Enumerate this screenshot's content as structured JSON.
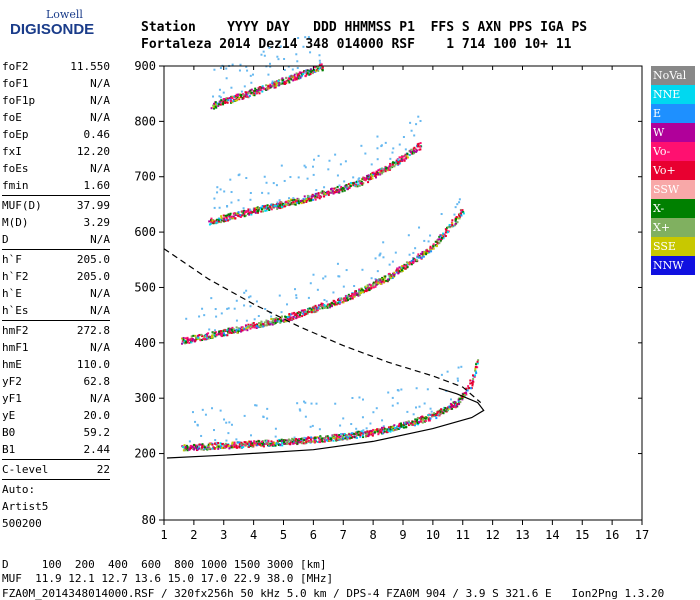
{
  "logo": {
    "line1": "Lowell",
    "line2": "DIGISONDE"
  },
  "header": {
    "labels": "Station    YYYY DAY   DDD HHMMSS P1  FFS S AXN PPS IGA PS",
    "values": "Fortaleza 2014 Dez14 348 014000 RSF    1 714 100 10+ 11"
  },
  "params_top": [
    {
      "key": "foF2",
      "value": "11.550"
    },
    {
      "key": "foF1",
      "value": "N/A"
    },
    {
      "key": "foF1p",
      "value": "N/A"
    },
    {
      "key": "foE",
      "value": "N/A"
    },
    {
      "key": "foEp",
      "value": "0.46"
    },
    {
      "key": "fxI",
      "value": "12.20"
    },
    {
      "key": "foEs",
      "value": "N/A"
    },
    {
      "key": "fmin",
      "value": "1.60"
    }
  ],
  "params_muf": [
    {
      "key": "MUF(D)",
      "value": "37.99"
    },
    {
      "key": "M(D)",
      "value": "3.29"
    },
    {
      "key": "D",
      "value": "N/A"
    }
  ],
  "params_h": [
    {
      "key": "h`F",
      "value": "205.0"
    },
    {
      "key": "h`F2",
      "value": "205.0"
    },
    {
      "key": "h`E",
      "value": "N/A"
    },
    {
      "key": "h`Es",
      "value": "N/A"
    }
  ],
  "params_hm": [
    {
      "key": "hmF2",
      "value": "272.8"
    },
    {
      "key": "hmF1",
      "value": "N/A"
    },
    {
      "key": "hmE",
      "value": "110.0"
    },
    {
      "key": "yF2",
      "value": "62.8"
    },
    {
      "key": "yF1",
      "value": "N/A"
    },
    {
      "key": "yE",
      "value": "20.0"
    },
    {
      "key": "B0",
      "value": "59.2"
    },
    {
      "key": "B1",
      "value": "2.44"
    }
  ],
  "params_clevel": [
    {
      "key": "C-level",
      "value": "22"
    }
  ],
  "notes": [
    "Auto:",
    "Artist5",
    "500200"
  ],
  "legend": [
    {
      "label": "NoVal",
      "color": "#888888"
    },
    {
      "label": "NNE",
      "color": "#00d8f0"
    },
    {
      "label": "E",
      "color": "#1e90ff"
    },
    {
      "label": "W",
      "color": "#b0009a"
    },
    {
      "label": "Vo-",
      "color": "#ff1070"
    },
    {
      "label": "Vo+",
      "color": "#e80030"
    },
    {
      "label": "SSW",
      "color": "#f8a8a8"
    },
    {
      "label": "X-",
      "color": "#008000"
    },
    {
      "label": "X+",
      "color": "#80b060"
    },
    {
      "label": "SSE",
      "color": "#c8c800"
    },
    {
      "label": "NNW",
      "color": "#1010e0"
    }
  ],
  "footer": {
    "line1": "D     100  200  400  600  800 1000 1500 3000 [km]",
    "line2": "MUF  11.9 12.1 12.7 13.6 15.0 17.0 22.9 38.0 [MHz]",
    "line3": "FZA0M_2014348014000.RSF / 320fx256h 50 kHz 5.0 km / DPS-4 FZA0M 904 / 3.9 S 321.6 E   Ion2Png 1.3.20"
  },
  "chart_data": {
    "type": "scatter",
    "xlim": [
      1,
      17
    ],
    "ylim": [
      80,
      900
    ],
    "xticks": [
      1,
      2,
      3,
      4,
      5,
      6,
      7,
      8,
      9,
      10,
      11,
      12,
      13,
      14,
      15,
      16,
      17
    ],
    "yticks": [
      80,
      200,
      300,
      400,
      500,
      600,
      700,
      800,
      900
    ],
    "traces": [
      {
        "name": "first-hop",
        "points": [
          [
            1.6,
            212
          ],
          [
            3,
            216
          ],
          [
            5,
            222
          ],
          [
            7,
            232
          ],
          [
            8,
            240
          ],
          [
            9,
            252
          ],
          [
            10,
            270
          ],
          [
            10.8,
            292
          ],
          [
            11.2,
            320
          ],
          [
            11.5,
            370
          ]
        ]
      },
      {
        "name": "second-hop",
        "points": [
          [
            1.6,
            405
          ],
          [
            3,
            420
          ],
          [
            5,
            445
          ],
          [
            7,
            480
          ],
          [
            8.5,
            520
          ],
          [
            10,
            575
          ],
          [
            11,
            640
          ]
        ]
      },
      {
        "name": "third-hop",
        "points": [
          [
            2.5,
            620
          ],
          [
            4,
            640
          ],
          [
            6,
            665
          ],
          [
            7.5,
            690
          ],
          [
            8.7,
            725
          ],
          [
            9.6,
            760
          ]
        ]
      },
      {
        "name": "fourth-hop",
        "points": [
          [
            2.6,
            830
          ],
          [
            4,
            855
          ],
          [
            5.5,
            885
          ],
          [
            6.3,
            900
          ]
        ]
      }
    ],
    "profile_solid": [
      [
        1.1,
        192
      ],
      [
        3,
        197
      ],
      [
        6,
        207
      ],
      [
        8,
        222
      ],
      [
        10,
        245
      ],
      [
        11.3,
        265
      ],
      [
        11.7,
        278
      ],
      [
        11.5,
        292
      ],
      [
        10.8,
        308
      ],
      [
        10.2,
        318
      ]
    ],
    "profile_dashed": [
      [
        1,
        570
      ],
      [
        2.5,
        515
      ],
      [
        4,
        470
      ],
      [
        5.5,
        430
      ],
      [
        7,
        395
      ],
      [
        8.5,
        365
      ],
      [
        10,
        340
      ],
      [
        11,
        320
      ],
      [
        11.6,
        292
      ]
    ]
  }
}
